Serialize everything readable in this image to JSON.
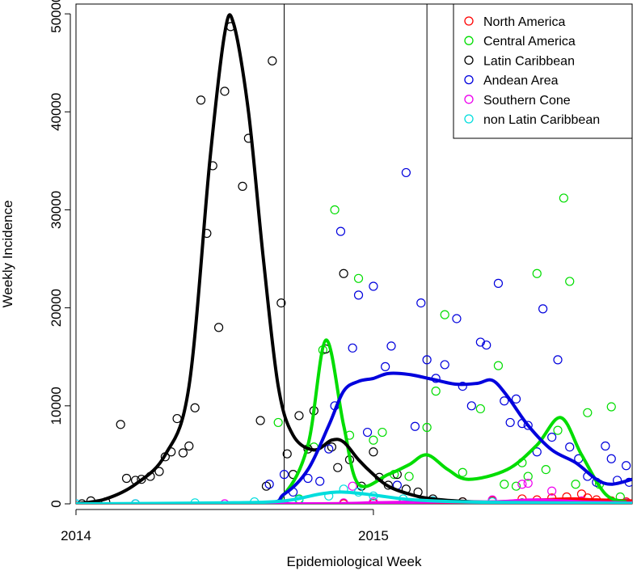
{
  "chart_data": {
    "type": "scatter",
    "xlabel": "Epidemiological Week",
    "ylabel": "Weekly Incidence",
    "xlim": [
      2014.0,
      2015.87
    ],
    "ylim": [
      0,
      51000
    ],
    "x_ticks": [
      {
        "value": 2014.0,
        "label": "2014"
      },
      {
        "value": 2015.0,
        "label": "2015"
      }
    ],
    "y_ticks": [
      {
        "value": 0,
        "label": "0"
      },
      {
        "value": 10000,
        "label": "10000"
      },
      {
        "value": 20000,
        "label": "20000"
      },
      {
        "value": 30000,
        "label": "30000"
      },
      {
        "value": 40000,
        "label": "40000"
      },
      {
        "value": 50000,
        "label": "50000"
      }
    ],
    "vertical_lines": [
      2014.7,
      2015.18
    ],
    "grid": false,
    "legend": {
      "position": "top-right",
      "marker": "open-circle"
    },
    "series": [
      {
        "name": "North America",
        "color": "#ff0000",
        "points": [
          [
            2014.9,
            0
          ],
          [
            2015.0,
            50
          ],
          [
            2015.1,
            100
          ],
          [
            2015.2,
            150
          ],
          [
            2015.3,
            200
          ],
          [
            2015.4,
            300
          ],
          [
            2015.5,
            500
          ],
          [
            2015.55,
            400
          ],
          [
            2015.6,
            600
          ],
          [
            2015.65,
            700
          ],
          [
            2015.7,
            1000
          ],
          [
            2015.72,
            600
          ],
          [
            2015.75,
            400
          ],
          [
            2015.8,
            300
          ],
          [
            2015.85,
            200
          ]
        ],
        "smooth": [
          [
            2014.0,
            0
          ],
          [
            2014.7,
            0
          ],
          [
            2015.0,
            20
          ],
          [
            2015.3,
            100
          ],
          [
            2015.5,
            300
          ],
          [
            2015.65,
            500
          ],
          [
            2015.75,
            400
          ],
          [
            2015.87,
            300
          ]
        ]
      },
      {
        "name": "Central America",
        "color": "#00dd00",
        "points": [
          [
            2014.68,
            8300
          ],
          [
            2014.7,
            0
          ],
          [
            2014.75,
            500
          ],
          [
            2014.8,
            5800
          ],
          [
            2014.83,
            15700
          ],
          [
            2014.87,
            30000
          ],
          [
            2014.92,
            7000
          ],
          [
            2014.95,
            23000
          ],
          [
            2015.0,
            6500
          ],
          [
            2015.03,
            7300
          ],
          [
            2015.07,
            3000
          ],
          [
            2015.12,
            2800
          ],
          [
            2015.18,
            7800
          ],
          [
            2015.21,
            11500
          ],
          [
            2015.24,
            19300
          ],
          [
            2015.3,
            3200
          ],
          [
            2015.36,
            9700
          ],
          [
            2015.42,
            14100
          ],
          [
            2015.44,
            2000
          ],
          [
            2015.48,
            1800
          ],
          [
            2015.5,
            4200
          ],
          [
            2015.52,
            2800
          ],
          [
            2015.55,
            23500
          ],
          [
            2015.58,
            3500
          ],
          [
            2015.62,
            7500
          ],
          [
            2015.64,
            31200
          ],
          [
            2015.66,
            22700
          ],
          [
            2015.68,
            2000
          ],
          [
            2015.72,
            9300
          ],
          [
            2015.76,
            2000
          ],
          [
            2015.8,
            9900
          ],
          [
            2015.83,
            700
          ]
        ],
        "smooth": [
          [
            2014.0,
            0
          ],
          [
            2014.6,
            0
          ],
          [
            2014.7,
            1000
          ],
          [
            2014.78,
            6000
          ],
          [
            2014.84,
            16700
          ],
          [
            2014.9,
            8000
          ],
          [
            2014.95,
            2000
          ],
          [
            2015.05,
            3000
          ],
          [
            2015.12,
            4000
          ],
          [
            2015.18,
            5000
          ],
          [
            2015.25,
            3500
          ],
          [
            2015.32,
            2500
          ],
          [
            2015.45,
            3500
          ],
          [
            2015.55,
            6000
          ],
          [
            2015.63,
            8800
          ],
          [
            2015.7,
            5000
          ],
          [
            2015.78,
            1000
          ],
          [
            2015.85,
            200
          ]
        ]
      },
      {
        "name": "Latin Caribbean",
        "color": "#000000",
        "points": [
          [
            2014.02,
            0
          ],
          [
            2014.05,
            300
          ],
          [
            2014.1,
            200
          ],
          [
            2014.15,
            8100
          ],
          [
            2014.17,
            2600
          ],
          [
            2014.2,
            2400
          ],
          [
            2014.22,
            2500
          ],
          [
            2014.25,
            2800
          ],
          [
            2014.28,
            3300
          ],
          [
            2014.3,
            4800
          ],
          [
            2014.32,
            5300
          ],
          [
            2014.34,
            8700
          ],
          [
            2014.36,
            5200
          ],
          [
            2014.38,
            5900
          ],
          [
            2014.4,
            9800
          ],
          [
            2014.42,
            41200
          ],
          [
            2014.44,
            27600
          ],
          [
            2014.46,
            34500
          ],
          [
            2014.48,
            18000
          ],
          [
            2014.5,
            42100
          ],
          [
            2014.52,
            48700
          ],
          [
            2014.56,
            32400
          ],
          [
            2014.58,
            37300
          ],
          [
            2014.62,
            8500
          ],
          [
            2014.64,
            1800
          ],
          [
            2014.66,
            45200
          ],
          [
            2014.69,
            20500
          ],
          [
            2014.71,
            5100
          ],
          [
            2014.73,
            3000
          ],
          [
            2014.75,
            9000
          ],
          [
            2014.78,
            5600
          ],
          [
            2014.8,
            9500
          ],
          [
            2014.84,
            15800
          ],
          [
            2014.86,
            5800
          ],
          [
            2014.88,
            3700
          ],
          [
            2014.9,
            23500
          ],
          [
            2014.92,
            4500
          ],
          [
            2014.96,
            1800
          ],
          [
            2015.0,
            5300
          ],
          [
            2015.02,
            2700
          ],
          [
            2015.05,
            1900
          ],
          [
            2015.08,
            3000
          ],
          [
            2015.11,
            1500
          ],
          [
            2015.15,
            1200
          ],
          [
            2015.2,
            500
          ],
          [
            2015.3,
            200
          ],
          [
            2015.5,
            100
          ],
          [
            2015.7,
            50
          ],
          [
            2015.85,
            0
          ]
        ],
        "smooth": [
          [
            2014.0,
            0
          ],
          [
            2014.1,
            500
          ],
          [
            2014.2,
            2000
          ],
          [
            2014.3,
            5000
          ],
          [
            2014.38,
            12000
          ],
          [
            2014.45,
            35000
          ],
          [
            2014.5,
            48000
          ],
          [
            2014.53,
            49000
          ],
          [
            2014.58,
            40000
          ],
          [
            2014.63,
            25000
          ],
          [
            2014.68,
            12000
          ],
          [
            2014.73,
            7000
          ],
          [
            2014.8,
            5500
          ],
          [
            2014.86,
            6500
          ],
          [
            2014.9,
            6300
          ],
          [
            2014.95,
            4500
          ],
          [
            2015.0,
            3000
          ],
          [
            2015.05,
            1800
          ],
          [
            2015.12,
            1000
          ],
          [
            2015.2,
            500
          ],
          [
            2015.35,
            200
          ],
          [
            2015.6,
            100
          ],
          [
            2015.87,
            50
          ]
        ]
      },
      {
        "name": "Andean Area",
        "color": "#0000dd",
        "points": [
          [
            2014.65,
            2000
          ],
          [
            2014.7,
            3000
          ],
          [
            2014.73,
            1200
          ],
          [
            2014.78,
            2600
          ],
          [
            2014.82,
            2300
          ],
          [
            2014.85,
            5600
          ],
          [
            2014.87,
            10000
          ],
          [
            2014.89,
            27800
          ],
          [
            2014.93,
            15900
          ],
          [
            2014.95,
            21300
          ],
          [
            2014.98,
            7300
          ],
          [
            2015.0,
            22200
          ],
          [
            2015.04,
            14000
          ],
          [
            2015.06,
            16100
          ],
          [
            2015.08,
            1900
          ],
          [
            2015.11,
            33800
          ],
          [
            2015.14,
            7900
          ],
          [
            2015.16,
            20500
          ],
          [
            2015.18,
            14700
          ],
          [
            2015.21,
            12800
          ],
          [
            2015.24,
            14200
          ],
          [
            2015.28,
            18900
          ],
          [
            2015.3,
            12000
          ],
          [
            2015.33,
            10000
          ],
          [
            2015.36,
            16500
          ],
          [
            2015.38,
            16200
          ],
          [
            2015.42,
            22500
          ],
          [
            2015.44,
            10500
          ],
          [
            2015.46,
            8300
          ],
          [
            2015.48,
            10700
          ],
          [
            2015.5,
            8200
          ],
          [
            2015.52,
            8000
          ],
          [
            2015.55,
            5300
          ],
          [
            2015.57,
            19900
          ],
          [
            2015.6,
            6800
          ],
          [
            2015.62,
            14700
          ],
          [
            2015.66,
            5800
          ],
          [
            2015.69,
            4600
          ],
          [
            2015.72,
            2800
          ],
          [
            2015.75,
            2200
          ],
          [
            2015.78,
            5900
          ],
          [
            2015.8,
            4600
          ],
          [
            2015.82,
            2400
          ],
          [
            2015.85,
            3900
          ],
          [
            2015.86,
            2200
          ]
        ],
        "smooth": [
          [
            2014.0,
            0
          ],
          [
            2014.6,
            0
          ],
          [
            2014.7,
            1000
          ],
          [
            2014.78,
            3500
          ],
          [
            2014.85,
            8000
          ],
          [
            2014.9,
            11500
          ],
          [
            2014.95,
            12500
          ],
          [
            2015.0,
            12800
          ],
          [
            2015.05,
            13300
          ],
          [
            2015.12,
            13200
          ],
          [
            2015.2,
            12700
          ],
          [
            2015.28,
            12200
          ],
          [
            2015.35,
            12300
          ],
          [
            2015.4,
            12600
          ],
          [
            2015.45,
            11000
          ],
          [
            2015.52,
            8000
          ],
          [
            2015.6,
            5500
          ],
          [
            2015.68,
            4200
          ],
          [
            2015.75,
            2500
          ],
          [
            2015.8,
            2000
          ],
          [
            2015.87,
            2500
          ]
        ]
      },
      {
        "name": "Southern Cone",
        "color": "#ee00ee",
        "points": [
          [
            2014.0,
            0
          ],
          [
            2014.2,
            0
          ],
          [
            2014.5,
            0
          ],
          [
            2014.7,
            0
          ],
          [
            2014.9,
            100
          ],
          [
            2014.93,
            1800
          ],
          [
            2015.0,
            200
          ],
          [
            2015.2,
            300
          ],
          [
            2015.4,
            400
          ],
          [
            2015.5,
            2000
          ],
          [
            2015.52,
            2100
          ],
          [
            2015.6,
            1300
          ],
          [
            2015.7,
            300
          ],
          [
            2015.8,
            200
          ],
          [
            2015.85,
            100
          ]
        ],
        "smooth": [
          [
            2014.0,
            0
          ],
          [
            2014.8,
            0
          ],
          [
            2015.0,
            100
          ],
          [
            2015.2,
            200
          ],
          [
            2015.4,
            200
          ],
          [
            2015.55,
            400
          ],
          [
            2015.7,
            200
          ],
          [
            2015.87,
            100
          ]
        ]
      },
      {
        "name": "non Latin Caribbean",
        "color": "#00dddd",
        "points": [
          [
            2014.0,
            0
          ],
          [
            2014.2,
            0
          ],
          [
            2014.4,
            100
          ],
          [
            2014.6,
            200
          ],
          [
            2014.75,
            400
          ],
          [
            2014.85,
            800
          ],
          [
            2014.9,
            1500
          ],
          [
            2014.95,
            1200
          ],
          [
            2015.0,
            800
          ],
          [
            2015.1,
            500
          ],
          [
            2015.2,
            300
          ],
          [
            2015.4,
            200
          ],
          [
            2015.6,
            100
          ],
          [
            2015.85,
            50
          ]
        ],
        "smooth": [
          [
            2014.0,
            0
          ],
          [
            2014.5,
            100
          ],
          [
            2014.7,
            300
          ],
          [
            2014.82,
            1000
          ],
          [
            2014.9,
            1200
          ],
          [
            2015.0,
            900
          ],
          [
            2015.1,
            500
          ],
          [
            2015.2,
            300
          ],
          [
            2015.4,
            150
          ],
          [
            2015.87,
            50
          ]
        ]
      }
    ]
  }
}
